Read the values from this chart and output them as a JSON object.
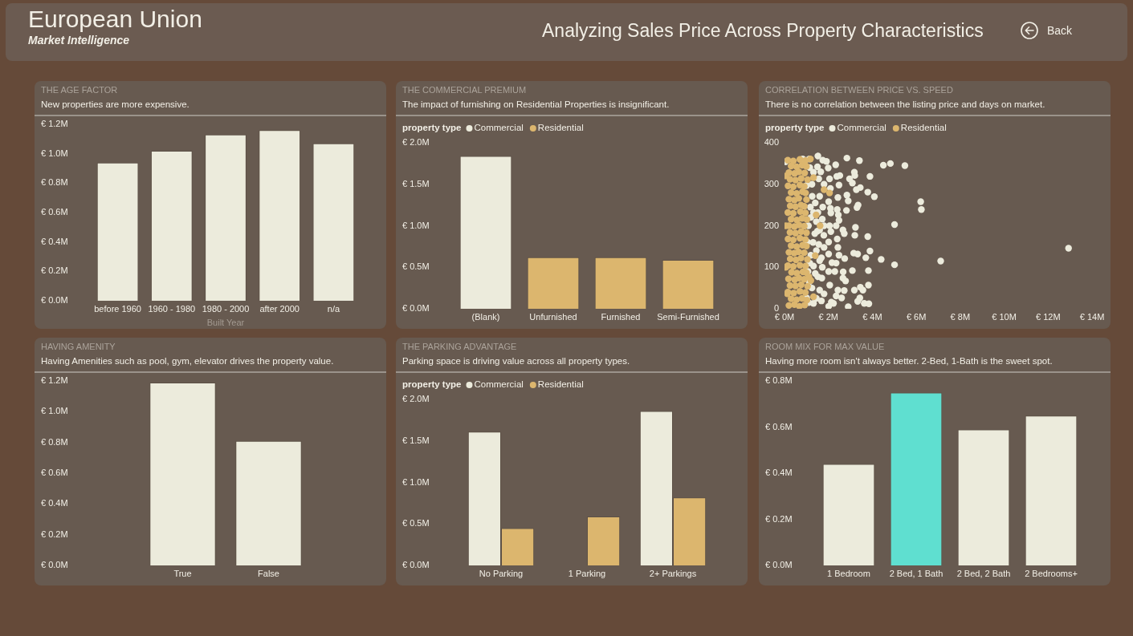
{
  "chart_data": [
    {
      "type": "other",
      "title": "European Union",
      "subtitle": "Market Intelligence",
      "annotations": [
        "Analyzing Sales Price Across Property Characteristics",
        "Back"
      ]
    },
    {
      "type": "bar",
      "title": "THE AGE FACTOR",
      "subtitle": "New properties are more expensive.",
      "xlabel": "Built Year",
      "categories": [
        "before 1960",
        "1960 - 1980",
        "1980 - 2000",
        "after 2000",
        "n/a"
      ],
      "values": [
        0.94,
        1.02,
        1.13,
        1.16,
        1.07
      ],
      "color": "#ecebdc",
      "ylim": [
        0,
        1.2
      ],
      "yticks": [
        {
          "value": 0,
          "label": "€ 0.0M"
        },
        {
          "value": 0.2,
          "label": "€ 0.2M"
        },
        {
          "value": 0.4,
          "label": "€ 0.4M"
        },
        {
          "value": 0.6,
          "label": "€ 0.6M"
        },
        {
          "value": 0.8,
          "label": "€ 0.8M"
        },
        {
          "value": 1,
          "label": "€ 1.0M"
        },
        {
          "value": 1.2,
          "label": "€ 1.2M"
        }
      ]
    },
    {
      "type": "bar",
      "title": "THE COMMERCIAL PREMIUM",
      "subtitle": "The impact of furnishing on Residential Properties is insignificant.",
      "categories": [
        "(Blank)",
        "Unfurnished",
        "Furnished",
        "Semi-Furnished"
      ],
      "series": [
        {
          "name": "Commercial",
          "color": "#ecebdc",
          "values": [
            1.84,
            null,
            null,
            null
          ]
        },
        {
          "name": "Residential",
          "color": "#dcb66e",
          "values": [
            null,
            0.62,
            0.62,
            0.59
          ]
        }
      ],
      "stacked": true,
      "legend": "top left",
      "legend_title": "property type",
      "ylim": [
        0,
        2
      ],
      "yticks": [
        {
          "value": 0,
          "label": "€ 0.0M"
        },
        {
          "value": 0.5,
          "label": "€ 0.5M"
        },
        {
          "value": 1,
          "label": "€ 1.0M"
        },
        {
          "value": 1.5,
          "label": "€ 1.5M"
        },
        {
          "value": 2,
          "label": "€ 2.0M"
        }
      ]
    },
    {
      "type": "scatter",
      "title": "CORRELATION BETWEEN PRICE VS. SPEED",
      "subtitle": "There is no correlation between the listing price and days on market.",
      "legend": "top left",
      "legend_title": "property type",
      "marker": "circle",
      "series": [
        {
          "name": "Commercial",
          "color": "#ecebdc",
          "x": [
            12.93,
            7.11,
            6.2,
            6.23,
            5.01,
            5.01,
            5.48,
            4.82,
            4.5,
            4.4,
            4.09,
            3.89,
            3.89,
            3.82,
            3.82,
            3.84,
            3.79,
            3.7,
            3.63,
            3.41,
            3.45,
            3.35,
            3.3,
            3.79,
            3.23,
            3.2,
            3.18,
            3.2,
            3.09,
            2.96,
            3.27,
            3.15,
            3.33,
            3.09,
            3.18,
            3.45,
            3.57,
            3.33,
            3.43,
            2.84,
            2.84,
            2.9,
            2.82,
            2.66,
            2.72,
            2.74,
            2.67,
            2.66,
            2.78,
            2.72,
            2.9,
            2.6,
            2.52,
            2.48,
            2.33,
            2.38,
            2.43,
            2.4,
            2.45,
            2.48,
            2.35,
            2.4,
            2.43,
            2.48,
            2.35,
            2.29,
            2.43,
            2.35,
            2.23,
            2.01,
            2.05,
            2.09,
            2.09,
            2.11,
            2.05,
            2.11,
            2.01,
            2.01,
            2.16,
            2.01,
            2.06,
            2.13,
            2.01,
            1.74,
            1.91,
            1.99,
            1.8,
            1.74,
            1.72,
            1.8,
            1.79,
            1.8,
            1.68,
            1.72,
            1.7,
            1.8,
            1.68,
            1.52,
            1.5,
            1.56,
            1.6,
            1.52,
            1.5,
            1.56,
            1.6,
            1.52,
            1.6,
            1.32,
            1.32,
            1.38,
            1.32,
            1.32,
            1.26,
            1.2,
            1.13,
            1.13,
            1.09,
            1.01,
            1.04,
            1.07,
            1.01,
            1.15,
            1.25,
            1.4,
            1.18,
            1.45,
            1.2,
            1.3,
            1.45,
            1.15,
            1.4,
            1.25,
            1.45,
            1.1,
            1.6,
            1.65,
            0.04,
            0.83
          ],
          "values": [
            146,
            115,
            258,
            239,
            203,
            106,
            345,
            350,
            346,
            119,
            270,
            319,
            139,
            92,
            57,
            12,
            174,
            123,
            13,
            357,
            292,
            250,
            244,
            281,
            196,
            177,
            329,
            321,
            303,
            313,
            287,
            134,
            132,
            92,
            45,
            52,
            45,
            18,
            26,
            363,
            274,
            260,
            237,
            190,
            181,
            121,
            89,
            74,
            67,
            44,
            5,
            26,
            321,
            298,
            347,
            319,
            268,
            239,
            226,
            213,
            200,
            168,
            148,
            129,
            110,
            90,
            45,
            31,
            13,
            258,
            313,
            290,
            242,
            231,
            200,
            186,
            161,
            132,
            111,
            90,
            57,
            16,
            6,
            358,
            355,
            339,
            300,
            245,
            216,
            200,
            177,
            148,
            123,
            100,
            74,
            36,
            19,
            368,
            342,
            313,
            271,
            232,
            187,
            155,
            116,
            77,
            45,
            329,
            232,
            181,
            103,
            13,
            271,
            129,
            65,
            361,
            200,
            297,
            161,
            90,
            26,
            340,
            300,
            255,
            245,
            210,
            220,
            160,
            140,
            110,
            85,
            50,
            25,
            15,
            190,
            330,
            354,
            361
          ]
        },
        {
          "name": "Residential",
          "color": "#dcb66e",
          "x": [
            0.2,
            0.45,
            0.68,
            0.92,
            0.3,
            0.55,
            0.8,
            1.02,
            0.15,
            0.42,
            0.7,
            0.95,
            0.25,
            0.5,
            0.76,
            1.05,
            0.18,
            0.46,
            0.66,
            0.9,
            0.32,
            0.56,
            0.84,
            1.0,
            0.15,
            0.4,
            0.7,
            0.96,
            0.26,
            0.52,
            0.75,
            1.04,
            0.2,
            0.44,
            0.64,
            0.9,
            0.3,
            0.55,
            0.82,
            1.0,
            0.16,
            0.4,
            0.7,
            0.95,
            0.25,
            0.5,
            0.76,
            1.0,
            0.2,
            0.45,
            0.66,
            0.9,
            0.3,
            0.56,
            0.8,
            1.02,
            0.15,
            0.4,
            0.72,
            0.95,
            0.26,
            0.5,
            0.75,
            0.9,
            0.2,
            0.45,
            0.65,
            1.0,
            0.3,
            0.55,
            0.82,
            0.96,
            0.16,
            0.4,
            0.7,
            0.9,
            0.25,
            0.5,
            0.76,
            1.05,
            0.2,
            0.46,
            0.65,
            0.92,
            0.3,
            0.55,
            0.8,
            1.0,
            0.15,
            0.4,
            0.7,
            0.95,
            1.18,
            1.32,
            1.8,
            2.05,
            1.44,
            1.62,
            1.4,
            1.11,
            1.2,
            1.32,
            0.13,
            0.06,
            0.06,
            0.06
          ],
          "values": [
            8,
            10,
            6,
            9,
            24,
            22,
            25,
            21,
            40,
            38,
            42,
            39,
            56,
            55,
            58,
            54,
            72,
            70,
            74,
            71,
            88,
            86,
            89,
            87,
            104,
            102,
            105,
            103,
            120,
            118,
            122,
            119,
            136,
            134,
            137,
            135,
            152,
            150,
            153,
            151,
            168,
            166,
            170,
            167,
            184,
            182,
            186,
            183,
            200,
            198,
            202,
            199,
            216,
            214,
            218,
            215,
            232,
            230,
            234,
            231,
            248,
            246,
            250,
            247,
            264,
            262,
            266,
            263,
            280,
            278,
            282,
            279,
            296,
            294,
            298,
            295,
            312,
            310,
            314,
            311,
            328,
            326,
            330,
            327,
            344,
            342,
            346,
            343,
            358,
            356,
            360,
            357,
            361,
            316,
            287,
            279,
            226,
            200,
            128,
            77,
            68,
            29,
            36,
            200,
            100,
            320
          ]
        }
      ],
      "xlim": [
        0,
        14
      ],
      "xticks": [
        {
          "value": 0,
          "label": "€ 0M"
        },
        {
          "value": 2,
          "label": "€ 2M"
        },
        {
          "value": 4,
          "label": "€ 4M"
        },
        {
          "value": 6,
          "label": "€ 6M"
        },
        {
          "value": 8,
          "label": "€ 8M"
        },
        {
          "value": 10,
          "label": "€ 10M"
        },
        {
          "value": 12,
          "label": "€ 12M"
        },
        {
          "value": 14,
          "label": "€ 14M"
        }
      ],
      "ylim": [
        0,
        400
      ],
      "yticks": [
        0,
        100,
        200,
        300,
        400
      ]
    },
    {
      "type": "bar",
      "title": "HAVING AMENITY",
      "subtitle": "Having Amenities such as pool, gym, elevator drives the property value.",
      "categories": [
        "True",
        "False"
      ],
      "values": [
        1.19,
        0.81
      ],
      "color": "#ecebdc",
      "ylim": [
        0,
        1.2
      ],
      "yticks": [
        {
          "value": 0,
          "label": "€ 0.0M"
        },
        {
          "value": 0.2,
          "label": "€ 0.2M"
        },
        {
          "value": 0.4,
          "label": "€ 0.4M"
        },
        {
          "value": 0.6,
          "label": "€ 0.6M"
        },
        {
          "value": 0.8,
          "label": "€ 0.8M"
        },
        {
          "value": 1,
          "label": "€ 1.0M"
        },
        {
          "value": 1.2,
          "label": "€ 1.2M"
        }
      ]
    },
    {
      "type": "bar",
      "title": "THE PARKING ADVANTAGE",
      "subtitle": "Parking space is driving value across all property types.",
      "categories": [
        "No Parking",
        "1 Parking",
        "2+ Parkings"
      ],
      "series": [
        {
          "name": "Commercial",
          "color": "#ecebdc",
          "values": [
            1.61,
            null,
            1.86
          ]
        },
        {
          "name": "Residential",
          "color": "#dcb66e",
          "values": [
            0.45,
            0.59,
            0.82
          ]
        }
      ],
      "legend": "top left",
      "legend_title": "property type",
      "ylim": [
        0,
        2
      ],
      "yticks": [
        {
          "value": 0,
          "label": "€ 0.0M"
        },
        {
          "value": 0.5,
          "label": "€ 0.5M"
        },
        {
          "value": 1,
          "label": "€ 1.0M"
        },
        {
          "value": 1.5,
          "label": "€ 1.5M"
        },
        {
          "value": 2,
          "label": "€ 2.0M"
        }
      ]
    },
    {
      "type": "bar",
      "title": "ROOM MIX FOR MAX VALUE",
      "subtitle": "Having more room isn't always better. 2-Bed, 1-Bath is the sweet spot.",
      "categories": [
        "1 Bedroom",
        "2 Bed, 1 Bath",
        "2 Bed, 2 Bath",
        "2 Bedrooms+"
      ],
      "values": [
        0.44,
        0.75,
        0.59,
        0.65
      ],
      "colors": [
        "#ecebdc",
        "#5fdfd0",
        "#ecebdc",
        "#ecebdc"
      ],
      "ylim": [
        0,
        0.8
      ],
      "yticks": [
        {
          "value": 0,
          "label": "€ 0.0M"
        },
        {
          "value": 0.2,
          "label": "€ 0.2M"
        },
        {
          "value": 0.4,
          "label": "€ 0.4M"
        },
        {
          "value": 0.6,
          "label": "€ 0.6M"
        },
        {
          "value": 0.8,
          "label": "€ 0.8M"
        }
      ]
    }
  ]
}
